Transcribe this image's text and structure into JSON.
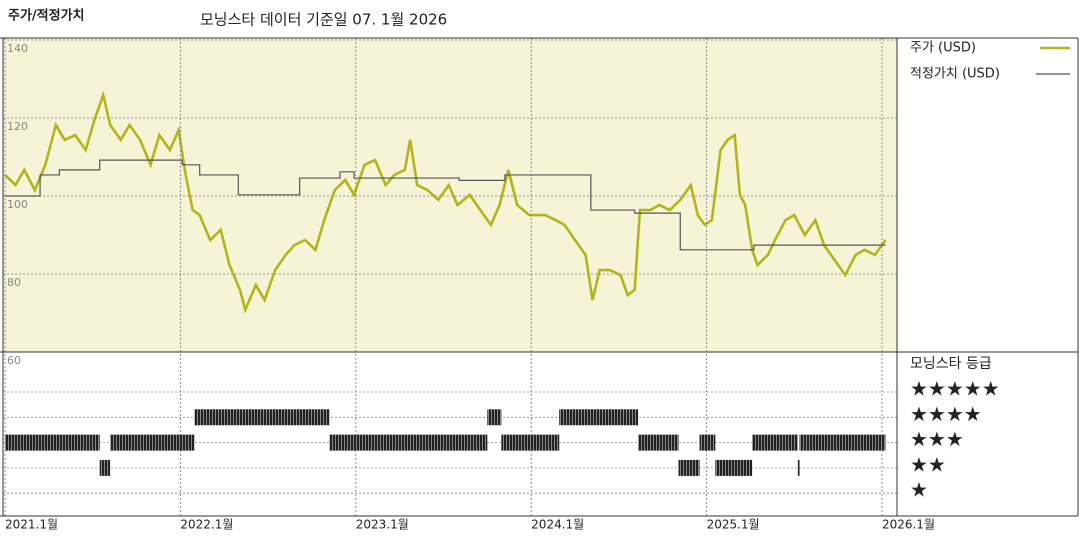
{
  "chart_data": [
    {
      "type": "line",
      "title": "주가/적정가치",
      "subtitle": "모닝스타 데이터 기준일 07. 1월 2026",
      "xlim": [
        2021,
        2026.08
      ],
      "ylim": [
        60,
        140
      ],
      "yticks": [
        60,
        80,
        100,
        120,
        140
      ],
      "grid": true,
      "background": "#f7f3d6",
      "series": [
        {
          "name": "주가 (USD)",
          "color": "#b2b41c",
          "x": [
            2021.0,
            2021.06,
            2021.11,
            2021.17,
            2021.23,
            2021.29,
            2021.34,
            2021.4,
            2021.46,
            2021.51,
            2021.56,
            2021.6,
            2021.66,
            2021.71,
            2021.77,
            2021.83,
            2021.88,
            2021.94,
            2021.99,
            2022.03,
            2022.07,
            2022.11,
            2022.17,
            2022.23,
            2022.28,
            2022.34,
            2022.37,
            2022.43,
            2022.48,
            2022.54,
            2022.6,
            2022.65,
            2022.71,
            2022.77,
            2022.82,
            2022.88,
            2022.94,
            2022.99,
            2023.05,
            2023.11,
            2023.17,
            2023.22,
            2023.28,
            2023.31,
            2023.35,
            2023.41,
            2023.47,
            2023.53,
            2023.58,
            2023.65,
            2023.71,
            2023.77,
            2023.82,
            2023.87,
            2023.92,
            2023.99,
            2024.08,
            2024.14,
            2024.19,
            2024.25,
            2024.31,
            2024.35,
            2024.39,
            2024.45,
            2024.51,
            2024.55,
            2024.59,
            2024.62,
            2024.68,
            2024.73,
            2024.79,
            2024.85,
            2024.91,
            2024.95,
            2024.99,
            2025.03,
            2025.08,
            2025.12,
            2025.16,
            2025.19,
            2025.22,
            2025.26,
            2025.29,
            2025.35,
            2025.39,
            2025.45,
            2025.5,
            2025.56,
            2025.62,
            2025.67,
            2025.73,
            2025.79,
            2025.85,
            2025.9,
            2025.96,
            2026.02
          ],
          "values": [
            105.4,
            102.8,
            106.7,
            101.5,
            108.0,
            118.2,
            114.4,
            115.6,
            111.8,
            119.5,
            125.9,
            118.2,
            114.4,
            118.2,
            114.4,
            108.0,
            115.6,
            111.8,
            116.9,
            105.4,
            96.4,
            95.1,
            88.7,
            91.3,
            82.3,
            75.9,
            70.8,
            77.2,
            73.3,
            81.0,
            84.9,
            87.4,
            88.7,
            86.2,
            93.8,
            101.5,
            104.1,
            100.3,
            108.0,
            109.2,
            102.8,
            105.4,
            106.7,
            114.4,
            102.8,
            101.5,
            99.0,
            102.8,
            97.7,
            100.3,
            96.4,
            92.6,
            97.7,
            106.7,
            97.7,
            95.1,
            95.1,
            93.8,
            92.6,
            88.7,
            84.9,
            73.3,
            81.0,
            81.0,
            79.7,
            74.6,
            75.9,
            96.4,
            96.4,
            97.7,
            96.4,
            99.0,
            102.8,
            95.1,
            92.6,
            93.8,
            111.8,
            114.4,
            115.6,
            100.3,
            97.7,
            86.2,
            82.3,
            84.9,
            88.7,
            93.8,
            95.1,
            90.0,
            93.8,
            87.4,
            83.6,
            79.7,
            84.9,
            86.2,
            84.9,
            88.7
          ]
        },
        {
          "name": "적정가치 (USD)",
          "color": "#555555",
          "x": [
            2021.0,
            2021.2,
            2021.2,
            2021.31,
            2021.31,
            2021.54,
            2021.54,
            2022.01,
            2022.01,
            2022.11,
            2022.11,
            2022.33,
            2022.33,
            2022.68,
            2022.68,
            2022.91,
            2022.91,
            2022.99,
            2022.99,
            2023.59,
            2023.59,
            2023.85,
            2023.85,
            2024.34,
            2024.34,
            2024.59,
            2024.59,
            2024.85,
            2024.85,
            2025.27,
            2025.27,
            2026.02
          ],
          "values": [
            100.0,
            100.0,
            105.4,
            105.4,
            106.7,
            106.7,
            109.2,
            109.2,
            108.0,
            108.0,
            105.4,
            105.4,
            100.3,
            100.3,
            104.6,
            104.6,
            106.2,
            106.2,
            104.6,
            104.6,
            104.0,
            104.0,
            105.4,
            105.4,
            96.4,
            96.4,
            95.6,
            95.6,
            86.2,
            86.2,
            87.4,
            87.4
          ]
        }
      ]
    },
    {
      "type": "rating",
      "title": "모닝스타 등급",
      "xlim": [
        2021,
        2026.08
      ],
      "categories": [
        "★",
        "★★",
        "★★★",
        "★★★★",
        "★★★★★"
      ],
      "color": "#2a2a2a",
      "xticks": [
        {
          "value": 2021,
          "label": "2021.1월"
        },
        {
          "value": 2022,
          "label": "2022.1월"
        },
        {
          "value": 2023,
          "label": "2023.1월"
        },
        {
          "value": 2024,
          "label": "2024.1월"
        },
        {
          "value": 2025,
          "label": "2025.1월"
        },
        {
          "value": 2026,
          "label": "2026.1월"
        }
      ],
      "periods": [
        {
          "start": 2021.0,
          "end": 2021.54,
          "stars": 3
        },
        {
          "start": 2021.54,
          "end": 2021.6,
          "stars": 2
        },
        {
          "start": 2021.6,
          "end": 2022.08,
          "stars": 3
        },
        {
          "start": 2022.08,
          "end": 2022.85,
          "stars": 4
        },
        {
          "start": 2022.85,
          "end": 2023.75,
          "stars": 3
        },
        {
          "start": 2023.75,
          "end": 2023.83,
          "stars": 4
        },
        {
          "start": 2023.83,
          "end": 2024.16,
          "stars": 3
        },
        {
          "start": 2024.16,
          "end": 2024.61,
          "stars": 4
        },
        {
          "start": 2024.61,
          "end": 2024.84,
          "stars": 3
        },
        {
          "start": 2024.84,
          "end": 2024.96,
          "stars": 2
        },
        {
          "start": 2024.96,
          "end": 2025.05,
          "stars": 3
        },
        {
          "start": 2025.05,
          "end": 2025.26,
          "stars": 2
        },
        {
          "start": 2025.26,
          "end": 2025.52,
          "stars": 3
        },
        {
          "start": 2025.52,
          "end": 2025.53,
          "stars": 2
        },
        {
          "start": 2025.53,
          "end": 2026.02,
          "stars": 3
        }
      ]
    }
  ]
}
